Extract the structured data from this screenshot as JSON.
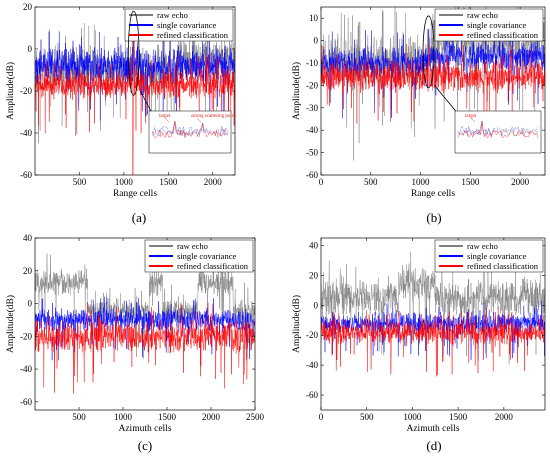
{
  "legend_labels": [
    "raw echo",
    "single covariance",
    "refined classification"
  ],
  "colors": {
    "raw": "#7f7f7f",
    "single": "#0000ff",
    "refined": "#ff0000"
  },
  "chart_data": [
    {
      "id": "a",
      "panel_label": "(a)",
      "type": "line",
      "xlabel": "Range cells",
      "ylabel": "Amplitude(dB)",
      "xlim": [
        0,
        2250
      ],
      "ylim": [
        -60,
        20
      ],
      "xticks": [
        500,
        1000,
        1500,
        2000
      ],
      "yticks": [
        -60,
        -40,
        -20,
        0,
        20
      ],
      "grid": false,
      "legend": "top-right",
      "series": [
        {
          "name": "raw echo",
          "mean": -10,
          "spread": 8,
          "segments": [
            {
              "from": 1600,
              "to": 2250,
              "mean": -5
            }
          ],
          "peaks": [
            {
              "x": 1110,
              "y": 15
            },
            {
              "x": 1095,
              "y": 8
            }
          ]
        },
        {
          "name": "single covariance",
          "mean": -8,
          "spread": 6,
          "peaks": [
            {
              "x": 1110,
              "y": 15
            }
          ]
        },
        {
          "name": "refined classification",
          "mean": -17,
          "spread": 5,
          "peaks": [
            {
              "x": 1110,
              "y": 10
            },
            {
              "x": 1100,
              "y": -60
            }
          ]
        }
      ],
      "annotations": [
        {
          "type": "ellipse",
          "cx": 1110,
          "cy": -2,
          "rx": 60,
          "ry": 20
        },
        {
          "type": "inset",
          "text": [
            "target",
            "strong scattering point"
          ],
          "xlim": [
            1095,
            1140
          ]
        }
      ]
    },
    {
      "id": "b",
      "panel_label": "(b)",
      "type": "line",
      "xlabel": "Range cells",
      "ylabel": "Amplitude(dB)",
      "xlim": [
        0,
        2250
      ],
      "ylim": [
        -60,
        15
      ],
      "xticks": [
        0,
        500,
        1000,
        1500,
        2000
      ],
      "yticks": [
        -60,
        -50,
        -40,
        -30,
        -20,
        -10,
        0,
        10
      ],
      "grid": false,
      "legend": "top-right",
      "series": [
        {
          "name": "raw echo",
          "mean": -10,
          "spread": 9,
          "segments": [
            {
              "from": 1100,
              "to": 2250,
              "mean": 0
            }
          ],
          "peaks": [
            {
              "x": 1070,
              "y": 5
            }
          ]
        },
        {
          "name": "single covariance",
          "mean": -10,
          "spread": 5,
          "segments": [
            {
              "from": 1100,
              "to": 2250,
              "mean": -7
            }
          ],
          "peaks": [
            {
              "x": 1080,
              "y": 5
            }
          ]
        },
        {
          "name": "refined classification",
          "mean": -16,
          "spread": 5,
          "peaks": [
            {
              "x": 1080,
              "y": -2
            }
          ]
        }
      ],
      "annotations": [
        {
          "type": "ellipse",
          "cx": 1080,
          "cy": -5,
          "rx": 55,
          "ry": 16
        },
        {
          "type": "inset",
          "text": [
            "target"
          ],
          "xlim": [
            1060,
            1100
          ]
        }
      ]
    },
    {
      "id": "c",
      "panel_label": "(c)",
      "type": "line",
      "xlabel": "Azimuth cells",
      "ylabel": "Amplitude(dB)",
      "xlim": [
        0,
        2500
      ],
      "ylim": [
        -65,
        40
      ],
      "xticks": [
        500,
        1000,
        1500,
        2000,
        2500
      ],
      "yticks": [
        -60,
        -40,
        -20,
        0,
        20,
        40
      ],
      "grid": false,
      "legend": "top-right",
      "series": [
        {
          "name": "raw echo",
          "mean": 13,
          "spread": 6,
          "segments": [
            {
              "from": 600,
              "to": 1300,
              "mean": -5
            },
            {
              "from": 1450,
              "to": 1850,
              "mean": -5
            },
            {
              "from": 2250,
              "to": 2500,
              "mean": -5
            }
          ]
        },
        {
          "name": "single covariance",
          "mean": -10,
          "spread": 5
        },
        {
          "name": "refined classification",
          "mean": -20,
          "spread": 7
        }
      ]
    },
    {
      "id": "d",
      "panel_label": "(d)",
      "type": "line",
      "xlabel": "Azimuth cells",
      "ylabel": "Amplitude(dB)",
      "xlim": [
        0,
        2450
      ],
      "ylim": [
        -70,
        45
      ],
      "xticks": [
        0,
        500,
        1000,
        1500,
        2000
      ],
      "yticks": [
        -60,
        -40,
        -20,
        0,
        20,
        40
      ],
      "grid": false,
      "legend": "top-right",
      "series": [
        {
          "name": "raw echo",
          "mean": 5,
          "spread": 9,
          "segments": [
            {
              "from": 850,
              "to": 1250,
              "mean": 15
            }
          ]
        },
        {
          "name": "single covariance",
          "mean": -12,
          "spread": 5
        },
        {
          "name": "refined classification",
          "mean": -18,
          "spread": 6
        }
      ]
    }
  ]
}
